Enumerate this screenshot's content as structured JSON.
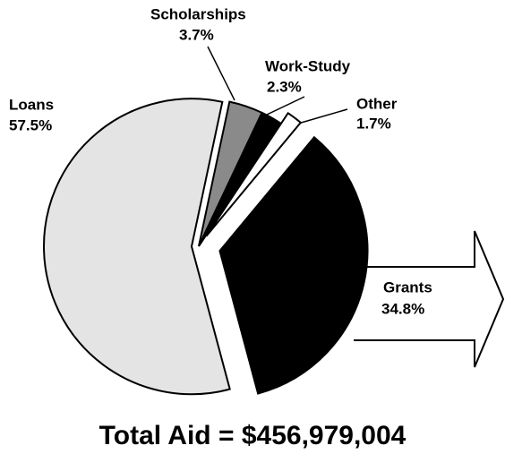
{
  "chart_data": {
    "type": "pie",
    "title": "Total Aid = $456,979,004",
    "categories": [
      "Loans",
      "Scholarships",
      "Work-Study",
      "Other",
      "Grants"
    ],
    "values": [
      57.5,
      3.7,
      2.3,
      1.7,
      34.8
    ],
    "value_labels": [
      "57.5%",
      "3.7%",
      "2.3%",
      "1.7%",
      "34.8%"
    ],
    "colors": [
      "#e4e4e4",
      "#8a8a8a",
      "#000000",
      "#ffffff",
      "#000000"
    ]
  }
}
